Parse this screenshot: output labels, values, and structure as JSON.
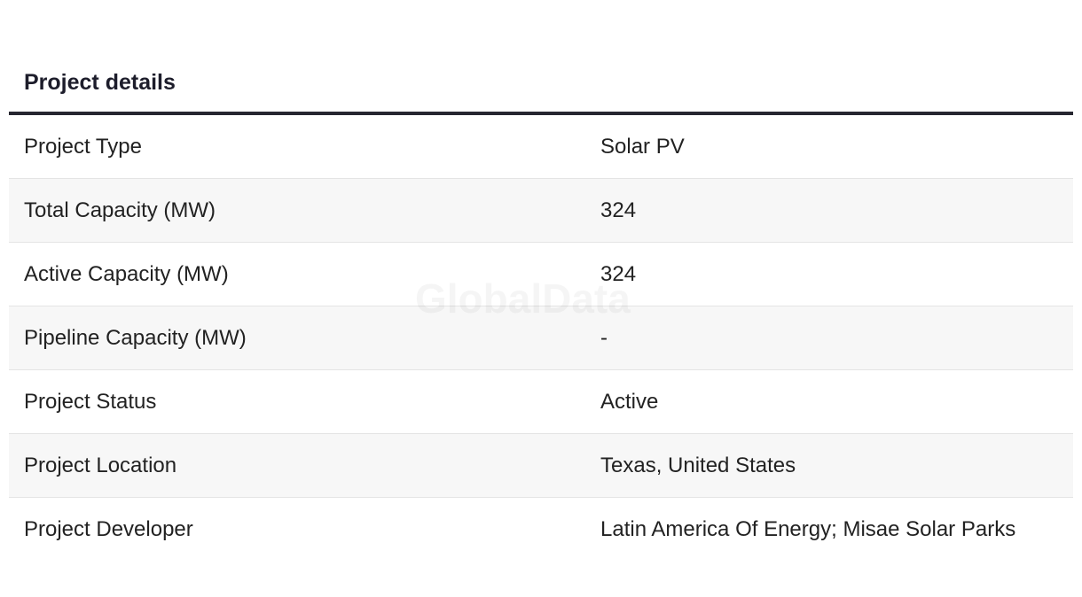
{
  "section": {
    "title": "Project details"
  },
  "watermark": "GlobalData",
  "rows": [
    {
      "label": "Project Type",
      "value": "Solar PV"
    },
    {
      "label": "Total Capacity (MW)",
      "value": "324"
    },
    {
      "label": "Active Capacity (MW)",
      "value": "324"
    },
    {
      "label": "Pipeline Capacity (MW)",
      "value": "-"
    },
    {
      "label": "Project Status",
      "value": "Active"
    },
    {
      "label": "Project Location",
      "value": "Texas, United States"
    },
    {
      "label": "Project Developer",
      "value": "Latin America Of Energy; Misae Solar Parks"
    }
  ],
  "colors": {
    "rule": "#262630",
    "alt_row": "#f7f7f7",
    "divider": "#e4e4e4"
  }
}
